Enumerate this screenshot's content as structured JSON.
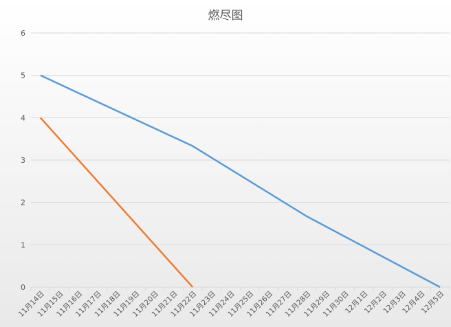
{
  "chart_data": {
    "type": "line",
    "title": "燃尽图",
    "xlabel": "",
    "ylabel": "",
    "ylim": [
      0,
      6
    ],
    "yticks": [
      0,
      1,
      2,
      3,
      4,
      5,
      6
    ],
    "grid": true,
    "legend": "none",
    "categories": [
      "11月14日",
      "11月15日",
      "11月16日",
      "11月17日",
      "11月18日",
      "11月19日",
      "11月20日",
      "11月21日",
      "11月22日",
      "11月23日",
      "11月24日",
      "11月25日",
      "11月26日",
      "11月27日",
      "11月28日",
      "11月29日",
      "11月30日",
      "12月1日",
      "12月2日",
      "12月3日",
      "12月4日",
      "12月5日"
    ],
    "series": [
      {
        "color": "#5B9BD5",
        "values": [
          5,
          null,
          null,
          null,
          null,
          null,
          null,
          null,
          3.33,
          null,
          null,
          null,
          null,
          null,
          1.67,
          null,
          null,
          null,
          null,
          null,
          null,
          0
        ]
      },
      {
        "color": "#ED7D31",
        "values": [
          4,
          null,
          null,
          null,
          null,
          null,
          null,
          null,
          0,
          null,
          null,
          null,
          null,
          null,
          null,
          null,
          null,
          null,
          null,
          null,
          null,
          null
        ]
      }
    ]
  }
}
